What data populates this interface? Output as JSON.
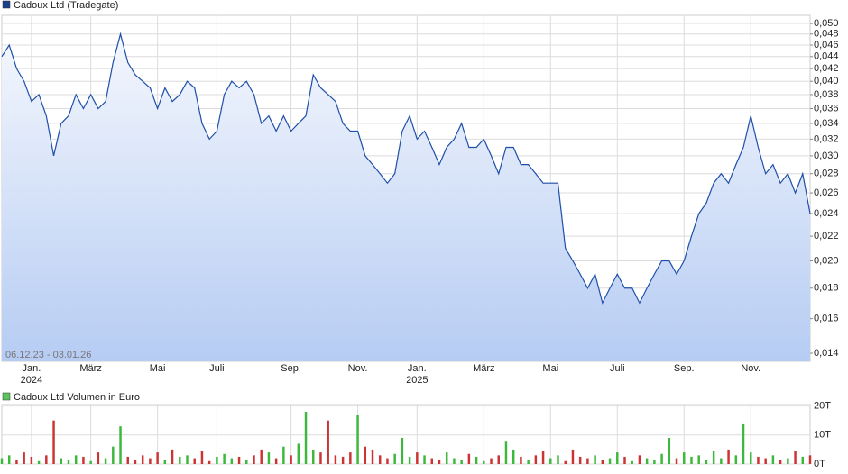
{
  "chart_data": [
    {
      "type": "line",
      "title": "Cadoux Ltd (Tradegate)",
      "color": "#1f4fa8",
      "legend_color": "#1a3f8f",
      "annotation": "06.12.23 - 03.01.26",
      "categories": [
        null,
        null,
        null,
        null,
        "Jan.\n2024",
        null,
        null,
        null,
        null,
        null,
        null,
        null,
        "März",
        null,
        null,
        null,
        null,
        null,
        null,
        null,
        null,
        "Mai",
        null,
        null,
        null,
        null,
        null,
        null,
        null,
        "Juli",
        null,
        null,
        null,
        null,
        null,
        null,
        null,
        null,
        null,
        "Sep.",
        null,
        null,
        null,
        null,
        null,
        null,
        null,
        null,
        "Nov.",
        null,
        null,
        null,
        null,
        null,
        null,
        null,
        "Jan.\n2025",
        null,
        null,
        null,
        null,
        null,
        null,
        null,
        null,
        "März",
        null,
        null,
        null,
        null,
        null,
        null,
        null,
        null,
        "Mai",
        null,
        null,
        null,
        null,
        null,
        null,
        null,
        null,
        "Juli",
        null,
        null,
        null,
        null,
        null,
        null,
        null,
        null,
        "Sep.",
        null,
        null,
        null,
        null,
        null,
        null,
        null,
        null,
        "Nov.",
        null,
        null,
        null,
        null,
        null,
        null,
        null,
        null
      ],
      "values": [
        0.044,
        0.046,
        0.042,
        0.04,
        0.037,
        0.038,
        0.035,
        0.03,
        0.034,
        0.035,
        0.038,
        0.036,
        0.038,
        0.036,
        0.037,
        0.043,
        0.048,
        0.043,
        0.041,
        0.04,
        0.039,
        0.036,
        0.039,
        0.037,
        0.038,
        0.04,
        0.039,
        0.034,
        0.032,
        0.033,
        0.038,
        0.04,
        0.039,
        0.04,
        0.038,
        0.034,
        0.035,
        0.033,
        0.035,
        0.033,
        0.034,
        0.035,
        0.041,
        0.039,
        0.038,
        0.037,
        0.034,
        0.033,
        0.033,
        0.03,
        0.029,
        0.028,
        0.027,
        0.028,
        0.033,
        0.035,
        0.032,
        0.033,
        0.031,
        0.029,
        0.031,
        0.032,
        0.034,
        0.031,
        0.031,
        0.032,
        0.03,
        0.028,
        0.031,
        0.031,
        0.029,
        0.029,
        0.028,
        0.027,
        0.027,
        0.027,
        0.021,
        0.02,
        0.019,
        0.018,
        0.019,
        0.017,
        0.018,
        0.019,
        0.018,
        0.018,
        0.017,
        0.018,
        0.019,
        0.02,
        0.02,
        0.019,
        0.02,
        0.022,
        0.024,
        0.025,
        0.027,
        0.028,
        0.027,
        0.029,
        0.031,
        0.035,
        0.031,
        0.028,
        0.029,
        0.027,
        0.028,
        0.026,
        0.028,
        0.024
      ],
      "log_scale": true,
      "grid": true,
      "ylim": [
        0.01357,
        0.0516
      ],
      "yticks": [
        {
          "value": 0.014,
          "label": "0,014"
        },
        {
          "value": 0.016,
          "label": "0,016"
        },
        {
          "value": 0.018,
          "label": "0,018"
        },
        {
          "value": 0.02,
          "label": "0,020"
        },
        {
          "value": 0.022,
          "label": "0,022"
        },
        {
          "value": 0.024,
          "label": "0,024"
        },
        {
          "value": 0.026,
          "label": "0,026"
        },
        {
          "value": 0.028,
          "label": "0,028"
        },
        {
          "value": 0.03,
          "label": "0,030"
        },
        {
          "value": 0.032,
          "label": "0,032"
        },
        {
          "value": 0.034,
          "label": "0,034"
        },
        {
          "value": 0.036,
          "label": "0,036"
        },
        {
          "value": 0.038,
          "label": "0,038"
        },
        {
          "value": 0.04,
          "label": "0,040"
        },
        {
          "value": 0.042,
          "label": "0,042"
        },
        {
          "value": 0.044,
          "label": "0,044"
        },
        {
          "value": 0.046,
          "label": "0,046"
        },
        {
          "value": 0.048,
          "label": "0,048"
        },
        {
          "value": 0.05,
          "label": "0,050"
        }
      ]
    },
    {
      "type": "bar",
      "title": "Cadoux Ltd Volumen in Euro",
      "legend_color": "#5cc45c",
      "up_color": "#3cb83c",
      "down_color": "#cc3333",
      "values": [
        2000,
        3000,
        1500,
        4000,
        2500,
        1000,
        3000,
        15000,
        2000,
        1500,
        3000,
        2500,
        1000,
        4000,
        2000,
        6000,
        13000,
        2500,
        1500,
        3000,
        2000,
        4000,
        1500,
        5000,
        2500,
        3000,
        2000,
        4500,
        1000,
        2500,
        3500,
        2000,
        2500,
        1500,
        3000,
        5000,
        4000,
        2000,
        6000,
        3000,
        7000,
        18000,
        5000,
        4000,
        15000,
        3000,
        2500,
        4000,
        17000,
        6000,
        5000,
        3000,
        2000,
        3500,
        9000,
        2500,
        4000,
        3000,
        2000,
        1500,
        4000,
        2000,
        1500,
        3500,
        2500,
        1000,
        2000,
        3000,
        8000,
        5000,
        2500,
        1500,
        3000,
        4500,
        2000,
        3000,
        1000,
        5000,
        2500,
        2000,
        3000,
        1500,
        2000,
        4000,
        2500,
        1000,
        3000,
        2000,
        1500,
        3500,
        9000,
        2000,
        4000,
        2500,
        3000,
        1500,
        4500,
        2000,
        5000,
        3000,
        14000,
        4000,
        2500,
        2000,
        3000,
        1500,
        2000,
        4500,
        2500,
        3000
      ],
      "grid": true,
      "ylim": [
        0,
        20500
      ],
      "yticks": [
        {
          "value": 0,
          "label": "0T"
        },
        {
          "value": 10000,
          "label": "10T"
        },
        {
          "value": 20000,
          "label": "20T"
        }
      ]
    }
  ]
}
